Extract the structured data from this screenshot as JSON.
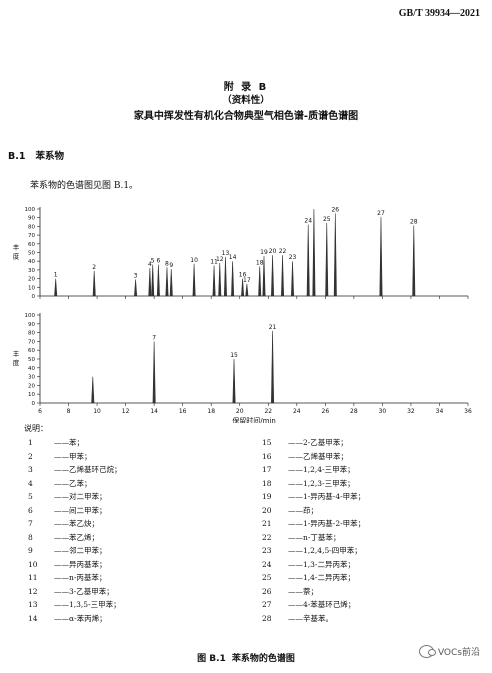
{
  "header": {
    "std_code": "GB/T 39934—2021"
  },
  "annex": {
    "title": "附  录  B",
    "nature": "（资料性）",
    "name": "家具中挥发性有机化合物典型气相色谱-质谱色谱图"
  },
  "section": {
    "number": "B.1",
    "title": "苯系物"
  },
  "intro": "苯系物的色谱图见图 B.1。",
  "chart_data": {
    "type": "line",
    "xlabel": "保留时间/min",
    "ylabel": "丰度",
    "xlim": [
      6,
      36
    ],
    "x_ticks": [
      6,
      8,
      10,
      12,
      14,
      16,
      18,
      20,
      22,
      24,
      26,
      28,
      30,
      32,
      34,
      36
    ],
    "ylim": [
      0,
      100
    ],
    "y_ticks": [
      0,
      10,
      20,
      30,
      40,
      50,
      60,
      70,
      80,
      90,
      100
    ],
    "panels": [
      {
        "peaks": [
          {
            "label": "1",
            "x": 7.1,
            "y": 20
          },
          {
            "label": "2",
            "x": 9.8,
            "y": 29
          },
          {
            "label": "3",
            "x": 12.7,
            "y": 19
          },
          {
            "label": "4",
            "x": 13.7,
            "y": 32
          },
          {
            "label": "5",
            "x": 13.9,
            "y": 36
          },
          {
            "label": "6",
            "x": 14.3,
            "y": 36
          },
          {
            "label": "8",
            "x": 14.9,
            "y": 33
          },
          {
            "label": "9",
            "x": 15.2,
            "y": 31
          },
          {
            "label": "10",
            "x": 16.8,
            "y": 37
          },
          {
            "label": "11",
            "x": 18.2,
            "y": 35
          },
          {
            "label": "12",
            "x": 18.6,
            "y": 38
          },
          {
            "label": "13",
            "x": 19.0,
            "y": 45
          },
          {
            "label": "14",
            "x": 19.5,
            "y": 40
          },
          {
            "label": "16",
            "x": 20.2,
            "y": 20
          },
          {
            "label": "17",
            "x": 20.5,
            "y": 14
          },
          {
            "label": "18",
            "x": 21.4,
            "y": 34
          },
          {
            "label": "19",
            "x": 21.7,
            "y": 46
          },
          {
            "label": "20",
            "x": 22.3,
            "y": 47
          },
          {
            "label": "22",
            "x": 23.0,
            "y": 47
          },
          {
            "label": "23",
            "x": 23.7,
            "y": 40
          },
          {
            "label": "24",
            "x": 24.8,
            "y": 82
          },
          {
            "label": "",
            "x": 25.2,
            "y": 100
          },
          {
            "label": "25",
            "x": 26.1,
            "y": 84
          },
          {
            "label": "26",
            "x": 26.7,
            "y": 95
          },
          {
            "label": "27",
            "x": 29.9,
            "y": 91
          },
          {
            "label": "28",
            "x": 32.2,
            "y": 81
          }
        ]
      },
      {
        "peaks": [
          {
            "label": "",
            "x": 9.7,
            "y": 30
          },
          {
            "label": "7",
            "x": 14.0,
            "y": 70
          },
          {
            "label": "15",
            "x": 19.6,
            "y": 50
          },
          {
            "label": "21",
            "x": 22.3,
            "y": 82
          }
        ]
      }
    ]
  },
  "legend": {
    "title": "说明：",
    "left": [
      {
        "num": "1",
        "text": "——苯；"
      },
      {
        "num": "2",
        "text": "——甲苯；"
      },
      {
        "num": "3",
        "text": "——乙烯基环己烷；"
      },
      {
        "num": "4",
        "text": "——乙苯；"
      },
      {
        "num": "5",
        "text": "——对二甲苯；"
      },
      {
        "num": "6",
        "text": "——间二甲苯；"
      },
      {
        "num": "7",
        "text": "——苯乙炔；"
      },
      {
        "num": "8",
        "text": "——苯乙烯；"
      },
      {
        "num": "9",
        "text": "——邻二甲苯；"
      },
      {
        "num": "10",
        "text": "——异丙基苯；"
      },
      {
        "num": "11",
        "text": "——n-丙基苯；"
      },
      {
        "num": "12",
        "text": "——3-乙基甲苯；"
      },
      {
        "num": "13",
        "text": "——1,3,5-三甲苯；"
      },
      {
        "num": "14",
        "text": "——α-苯丙烯；"
      }
    ],
    "right": [
      {
        "num": "15",
        "text": "——2-乙基甲苯；"
      },
      {
        "num": "16",
        "text": "——乙烯基甲苯；"
      },
      {
        "num": "17",
        "text": "——1,2,4-三甲苯；"
      },
      {
        "num": "18",
        "text": "——1,2,3-三甲苯；"
      },
      {
        "num": "19",
        "text": "——1-异丙基-4-甲苯；"
      },
      {
        "num": "20",
        "text": "——茚；"
      },
      {
        "num": "21",
        "text": "——1-异丙基-2-甲苯；"
      },
      {
        "num": "22",
        "text": "——n-丁基苯；"
      },
      {
        "num": "23",
        "text": "——1,2,4,5-四甲苯；"
      },
      {
        "num": "24",
        "text": "——1,3-二异丙苯；"
      },
      {
        "num": "25",
        "text": "——1,4-二异丙苯；"
      },
      {
        "num": "26",
        "text": "——萘；"
      },
      {
        "num": "27",
        "text": "——4-苯基环己烯；"
      },
      {
        "num": "28",
        "text": "——辛基苯。"
      }
    ]
  },
  "caption": {
    "fig": "图 B.1",
    "text": "苯系物的色谱图"
  },
  "watermark": {
    "text": "VOCs前沿"
  }
}
